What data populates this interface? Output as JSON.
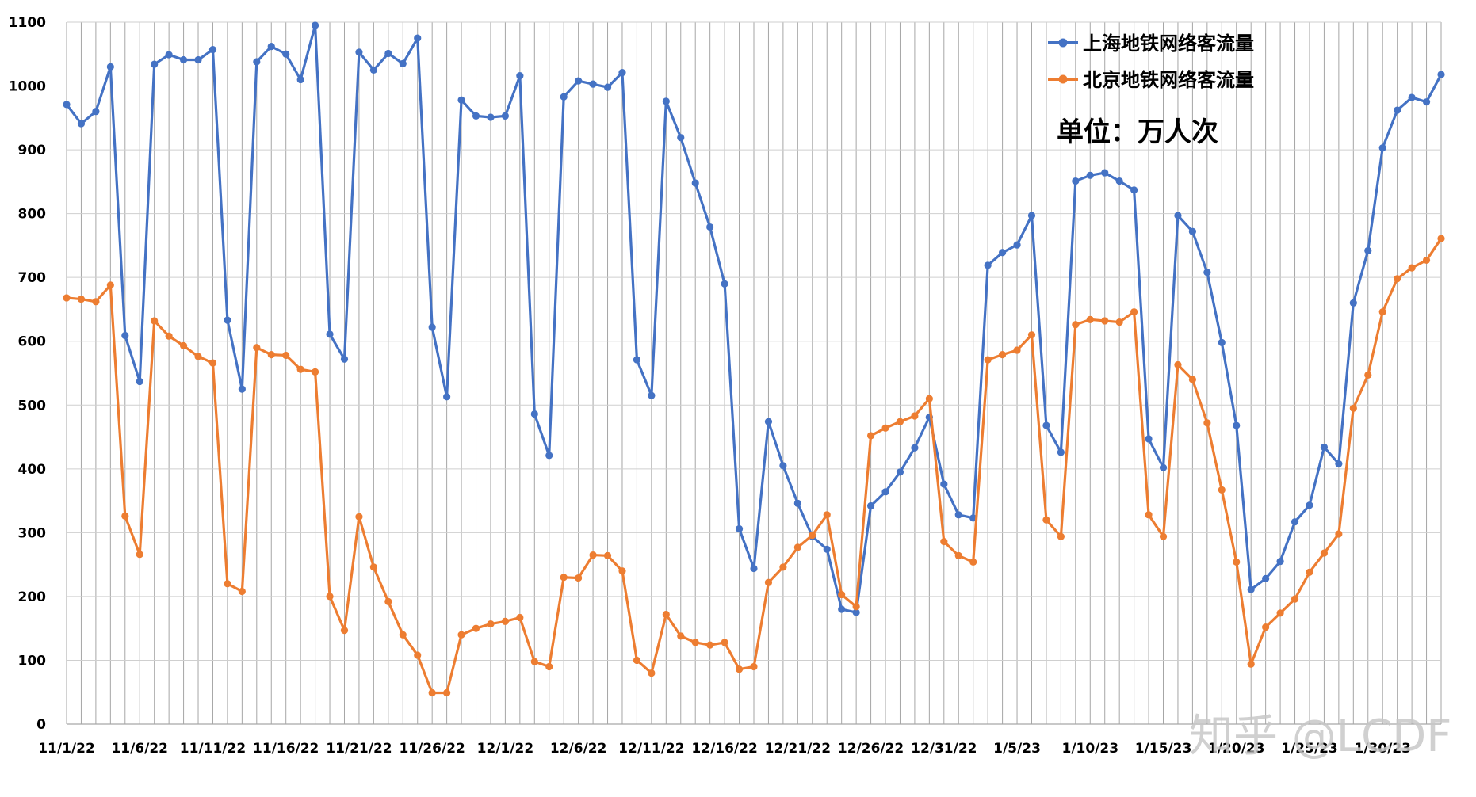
{
  "chart_data": {
    "type": "line",
    "title": "",
    "xlabel": "",
    "ylabel": "",
    "ylim": [
      0,
      1100
    ],
    "y_ticks": [
      0,
      100,
      200,
      300,
      400,
      500,
      600,
      700,
      800,
      900,
      1000,
      1100
    ],
    "grid": "horizontal and vertical",
    "legend_position": "top-right",
    "unit_label": "单位：万人次",
    "watermark": "知乎 @LCDF",
    "x_tick_labels": [
      "11/1/22",
      "11/6/22",
      "11/11/22",
      "11/16/22",
      "11/21/22",
      "11/26/22",
      "12/1/22",
      "12/6/22",
      "12/11/22",
      "12/16/22",
      "12/21/22",
      "12/26/22",
      "12/31/22",
      "1/5/23",
      "1/10/23",
      "1/15/23",
      "1/20/23",
      "1/25/23",
      "1/30/23"
    ],
    "x_start": "11/1/22",
    "x_end": "2/1/23",
    "series": [
      {
        "name": "上海地铁网络客流量",
        "color": "#4472C4",
        "values": [
          971,
          941,
          960,
          1030,
          609,
          537,
          1034,
          1049,
          1041,
          1041,
          1057,
          633,
          525,
          1038,
          1062,
          1050,
          1010,
          1095,
          611,
          572,
          1053,
          1025,
          1051,
          1035,
          1075,
          622,
          513,
          978,
          953,
          951,
          953,
          1016,
          486,
          421,
          983,
          1008,
          1003,
          998,
          1021,
          571,
          515,
          976,
          919,
          848,
          779,
          690,
          306,
          244,
          474,
          405,
          346,
          294,
          274,
          180,
          175,
          342,
          364,
          395,
          433,
          481,
          376,
          328,
          323,
          719,
          739,
          751,
          797,
          468,
          426,
          851,
          860,
          864,
          851,
          837,
          447,
          402,
          797,
          772,
          708,
          598,
          468,
          211,
          228,
          255,
          317,
          343,
          434,
          408,
          660,
          742,
          903,
          962,
          982,
          975,
          1018
        ]
      },
      {
        "name": "北京地铁网络客流量",
        "color": "#ED7D31",
        "values": [
          668,
          666,
          662,
          688,
          326,
          266,
          632,
          608,
          593,
          576,
          566,
          220,
          208,
          590,
          579,
          578,
          556,
          552,
          200,
          147,
          325,
          246,
          192,
          140,
          108,
          49,
          49,
          140,
          150,
          157,
          161,
          167,
          98,
          90,
          230,
          229,
          265,
          264,
          240,
          100,
          80,
          172,
          138,
          128,
          124,
          128,
          86,
          90,
          222,
          246,
          277,
          296,
          328,
          203,
          184,
          452,
          464,
          474,
          483,
          510,
          286,
          264,
          254,
          571,
          579,
          586,
          610,
          320,
          294,
          626,
          634,
          632,
          630,
          646,
          328,
          294,
          563,
          540,
          472,
          367,
          254,
          94,
          152,
          174,
          196,
          238,
          268,
          298,
          495,
          547,
          646,
          698,
          715,
          727,
          761
        ]
      }
    ]
  }
}
